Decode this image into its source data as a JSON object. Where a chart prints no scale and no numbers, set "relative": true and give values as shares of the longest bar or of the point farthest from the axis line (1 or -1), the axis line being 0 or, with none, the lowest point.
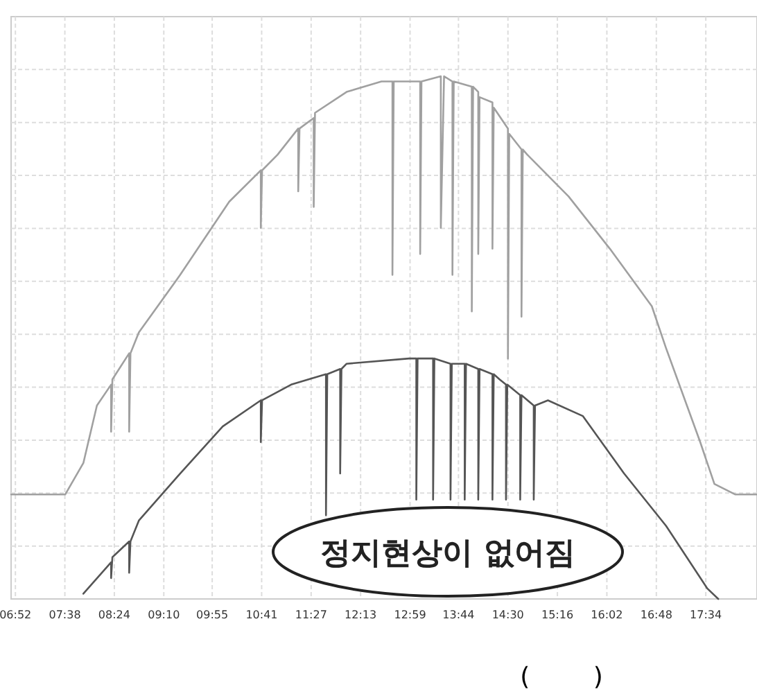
{
  "chart_data": {
    "type": "line",
    "relative": true,
    "grid": true,
    "line_style": "solid",
    "xlim": [
      6.8,
      18.36
    ],
    "xticks": [
      {
        "value": 6.8667,
        "label": "06:52"
      },
      {
        "value": 7.6333,
        "label": "07:38"
      },
      {
        "value": 8.4,
        "label": "08:24"
      },
      {
        "value": 9.1667,
        "label": "09:10"
      },
      {
        "value": 9.9167,
        "label": "09:55"
      },
      {
        "value": 10.6833,
        "label": "10:41"
      },
      {
        "value": 11.45,
        "label": "11:27"
      },
      {
        "value": 12.2167,
        "label": "12:13"
      },
      {
        "value": 12.9833,
        "label": "12:59"
      },
      {
        "value": 13.7333,
        "label": "13:44"
      },
      {
        "value": 14.5,
        "label": "14:30"
      },
      {
        "value": 15.2667,
        "label": "15:16"
      },
      {
        "value": 16.0333,
        "label": "16:02"
      },
      {
        "value": 16.8,
        "label": "16:48"
      },
      {
        "value": 17.5667,
        "label": "17:34"
      }
    ],
    "series": [
      {
        "color": "#a0a0a0",
        "x": [
          6.8,
          7.64,
          7.92,
          8.13,
          8.35,
          8.35,
          8.37,
          8.63,
          8.63,
          8.65,
          8.78,
          9.42,
          10.18,
          10.67,
          10.67,
          10.69,
          10.93,
          11.25,
          11.25,
          11.27,
          11.49,
          11.49,
          11.51,
          12.0,
          12.54,
          12.71,
          12.71,
          12.73,
          13.08,
          13.14,
          13.14,
          13.16,
          13.46,
          13.46,
          13.51,
          13.64,
          13.64,
          13.66,
          13.94,
          13.94,
          13.96,
          14.04,
          14.04,
          14.06,
          14.26,
          14.26,
          14.28,
          14.5,
          14.5,
          14.52,
          14.71,
          14.71,
          14.73,
          14.8,
          15.44,
          16.08,
          16.73,
          16.95,
          17.48,
          17.7,
          18.02,
          18.36
        ],
        "values": [
          0.2,
          0.2,
          0.26,
          0.37,
          0.41,
          0.32,
          0.42,
          0.47,
          0.32,
          0.47,
          0.51,
          0.62,
          0.76,
          0.82,
          0.71,
          0.82,
          0.85,
          0.9,
          0.78,
          0.9,
          0.92,
          0.75,
          0.93,
          0.97,
          0.99,
          0.99,
          0.62,
          0.99,
          0.99,
          0.99,
          0.66,
          0.99,
          1.0,
          0.71,
          1.0,
          0.99,
          0.62,
          0.99,
          0.98,
          0.55,
          0.98,
          0.97,
          0.66,
          0.96,
          0.95,
          0.67,
          0.94,
          0.9,
          0.46,
          0.89,
          0.86,
          0.54,
          0.86,
          0.85,
          0.77,
          0.67,
          0.56,
          0.48,
          0.3,
          0.22,
          0.2,
          0.2
        ]
      },
      {
        "color": "#555555",
        "x": [
          7.92,
          8.35,
          8.35,
          8.37,
          8.63,
          8.63,
          8.65,
          8.78,
          9.42,
          10.08,
          10.67,
          10.67,
          10.69,
          11.14,
          11.68,
          11.68,
          11.7,
          11.9,
          11.9,
          11.92,
          12.0,
          12.97,
          13.08,
          13.08,
          13.1,
          13.34,
          13.34,
          13.36,
          13.61,
          13.61,
          13.63,
          13.83,
          13.83,
          13.85,
          14.04,
          14.04,
          14.06,
          14.26,
          14.26,
          14.28,
          14.37,
          14.47,
          14.47,
          14.49,
          14.69,
          14.69,
          14.71,
          14.9,
          14.9,
          14.92,
          15.12,
          15.66,
          16.3,
          16.95,
          17.59,
          17.76
        ],
        "values": [
          0.01,
          0.07,
          0.04,
          0.08,
          0.11,
          0.05,
          0.11,
          0.15,
          0.24,
          0.33,
          0.38,
          0.3,
          0.38,
          0.41,
          0.43,
          0.16,
          0.43,
          0.44,
          0.24,
          0.44,
          0.45,
          0.46,
          0.46,
          0.19,
          0.46,
          0.46,
          0.19,
          0.46,
          0.45,
          0.19,
          0.45,
          0.45,
          0.19,
          0.45,
          0.44,
          0.19,
          0.44,
          0.43,
          0.19,
          0.43,
          0.42,
          0.41,
          0.19,
          0.41,
          0.39,
          0.19,
          0.39,
          0.37,
          0.19,
          0.37,
          0.38,
          0.35,
          0.24,
          0.14,
          0.02,
          0
        ]
      }
    ],
    "annotations": [
      "정지현상이 없어짐",
      "(        )"
    ]
  }
}
